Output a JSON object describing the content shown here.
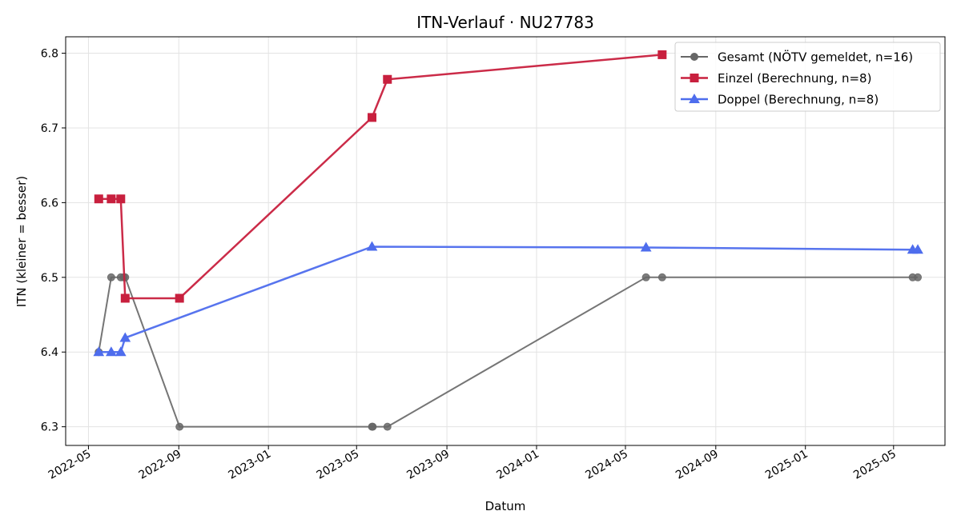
{
  "chart_data": {
    "type": "line",
    "title": "ITN-Verlauf · NU27783",
    "xlabel": "Datum",
    "ylabel": "ITN  (kleiner = besser)",
    "x_axis_type": "date",
    "xlim": [
      "2022-03-31",
      "2025-07-10"
    ],
    "ylim": [
      6.275,
      6.822
    ],
    "x_ticks": [
      "2022-05-01",
      "2022-09-01",
      "2023-01-01",
      "2023-05-01",
      "2023-09-01",
      "2024-01-01",
      "2024-05-01",
      "2024-09-01",
      "2025-01-01",
      "2025-05-01"
    ],
    "x_tick_labels": [
      "2022-05",
      "2022-09",
      "2023-01",
      "2023-05",
      "2023-09",
      "2024-01",
      "2024-05",
      "2024-09",
      "2025-01",
      "2025-05"
    ],
    "y_ticks": [
      6.3,
      6.4,
      6.5,
      6.6,
      6.7,
      6.8
    ],
    "y_tick_labels": [
      "6.3",
      "6.4",
      "6.5",
      "6.6",
      "6.7",
      "6.8"
    ],
    "grid": true,
    "legend_position": "top-right",
    "series": [
      {
        "name": "Gesamt (NÖTV gemeldet, n=16)",
        "color": "#666666",
        "marker": "circle",
        "x": [
          "2022-05-15",
          "2022-06-01",
          "2022-06-14",
          "2022-06-18",
          "2022-06-20",
          "2022-09-02",
          "2023-05-22",
          "2023-05-23",
          "2023-06-12",
          "2024-05-29",
          "2024-06-20",
          "2025-05-27",
          "2025-06-03"
        ],
        "y": [
          6.4,
          6.5,
          6.5,
          6.5,
          6.5,
          6.3,
          6.3,
          6.3,
          6.3,
          6.5,
          6.5,
          6.5,
          6.5
        ]
      },
      {
        "name": "Einzel (Berechnung, n=8)",
        "color": "#c8203e",
        "marker": "square",
        "x": [
          "2022-05-15",
          "2022-06-01",
          "2022-06-14",
          "2022-06-20",
          "2022-09-02",
          "2023-05-22",
          "2023-06-12",
          "2024-06-20"
        ],
        "y": [
          6.605,
          6.605,
          6.605,
          6.472,
          6.472,
          6.714,
          6.765,
          6.798
        ]
      },
      {
        "name": "Doppel (Berechnung, n=8)",
        "color": "#4e6ded",
        "marker": "triangle",
        "x": [
          "2022-05-15",
          "2022-06-01",
          "2022-06-14",
          "2022-06-20",
          "2023-05-22",
          "2024-05-29",
          "2025-05-27",
          "2025-06-03"
        ],
        "y": [
          6.4,
          6.4,
          6.4,
          6.419,
          6.541,
          6.54,
          6.537,
          6.537
        ]
      }
    ]
  }
}
